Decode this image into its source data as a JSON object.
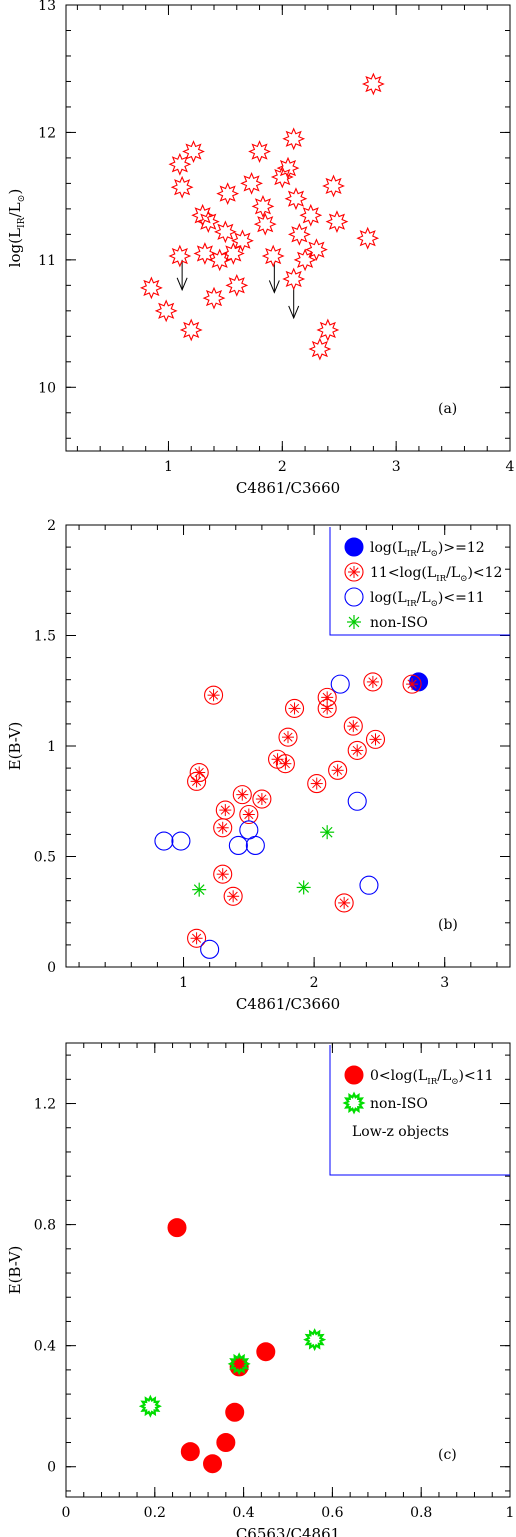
{
  "chart_data": [
    {
      "id": "a",
      "type": "scatter",
      "panel_label": "(a)",
      "xlabel": "C4861/C3660",
      "ylabel": "log(L_IR/L_sun)",
      "xlim": [
        0.1,
        4.0
      ],
      "ylim": [
        9.5,
        13.0
      ],
      "xticks": [
        1,
        2,
        3,
        4
      ],
      "yticks": [
        10,
        11,
        12,
        13
      ],
      "series": [
        {
          "marker": "star8",
          "color": "#ff0000",
          "points": [
            [
              0.85,
              10.78
            ],
            [
              0.98,
              10.6
            ],
            [
              1.1,
              11.75
            ],
            [
              1.22,
              11.85
            ],
            [
              1.12,
              11.57
            ],
            [
              1.1,
              11.03
            ],
            [
              1.2,
              10.45
            ],
            [
              1.3,
              11.35
            ],
            [
              1.35,
              11.3
            ],
            [
              1.32,
              11.05
            ],
            [
              1.4,
              10.7
            ],
            [
              1.45,
              11.0
            ],
            [
              1.5,
              11.22
            ],
            [
              1.52,
              11.52
            ],
            [
              1.57,
              11.05
            ],
            [
              1.6,
              10.8
            ],
            [
              1.65,
              11.15
            ],
            [
              1.73,
              11.6
            ],
            [
              1.8,
              11.85
            ],
            [
              1.83,
              11.42
            ],
            [
              1.85,
              11.28
            ],
            [
              1.92,
              11.03
            ],
            [
              2.0,
              11.65
            ],
            [
              2.05,
              11.72
            ],
            [
              2.1,
              11.95
            ],
            [
              2.12,
              11.48
            ],
            [
              2.15,
              11.2
            ],
            [
              2.1,
              10.85
            ],
            [
              2.2,
              11.0
            ],
            [
              2.25,
              11.35
            ],
            [
              2.3,
              11.08
            ],
            [
              2.33,
              10.3
            ],
            [
              2.4,
              10.45
            ],
            [
              2.45,
              11.58
            ],
            [
              2.48,
              11.3
            ],
            [
              2.75,
              11.17
            ],
            [
              2.8,
              12.38
            ]
          ]
        }
      ],
      "upper_limit_arrows": [
        [
          1.12,
          11.0
        ],
        [
          1.93,
          10.98
        ],
        [
          2.1,
          10.78
        ]
      ]
    },
    {
      "id": "b",
      "type": "scatter",
      "panel_label": "(b)",
      "xlabel": "C4861/C3660",
      "ylabel": "E(B-V)",
      "xlim": [
        0.1,
        3.5
      ],
      "ylim": [
        0,
        2
      ],
      "xticks": [
        1,
        2,
        3
      ],
      "yticks": [
        0,
        0.5,
        1,
        1.5,
        2
      ],
      "legend": {
        "position": "top-right",
        "entries": [
          {
            "label": "log(L_IR/L_sun)>=12",
            "marker": "filled-circle",
            "color": "#0000ff"
          },
          {
            "label": "11<log(L_IR/L_sun)<12",
            "marker": "circle-asterisk",
            "color": "#ff0000"
          },
          {
            "label": "log(L_IR/L_sun)<=11",
            "marker": "open-circle",
            "color": "#0000ff"
          },
          {
            "label": "non-ISO",
            "marker": "asterisk",
            "color": "#00cc00"
          }
        ]
      },
      "series": [
        {
          "name": "log(L_IR/L_sun)>=12",
          "marker": "filled-circle",
          "color": "#0000ff",
          "points": [
            [
              2.8,
              1.29
            ]
          ]
        },
        {
          "name": "11<log(L_IR/L_sun)<12",
          "marker": "circle-asterisk",
          "color": "#ff0000",
          "points": [
            [
              1.1,
              0.13
            ],
            [
              1.1,
              0.84
            ],
            [
              1.12,
              0.88
            ],
            [
              1.23,
              1.23
            ],
            [
              1.3,
              0.63
            ],
            [
              1.3,
              0.42
            ],
            [
              1.32,
              0.71
            ],
            [
              1.38,
              0.32
            ],
            [
              1.45,
              0.78
            ],
            [
              1.5,
              0.69
            ],
            [
              1.6,
              0.76
            ],
            [
              1.72,
              0.94
            ],
            [
              1.78,
              0.92
            ],
            [
              1.8,
              1.04
            ],
            [
              1.85,
              1.17
            ],
            [
              2.02,
              0.83
            ],
            [
              2.1,
              1.22
            ],
            [
              2.1,
              1.17
            ],
            [
              2.18,
              0.89
            ],
            [
              2.23,
              0.29
            ],
            [
              2.3,
              1.09
            ],
            [
              2.33,
              0.98
            ],
            [
              2.45,
              1.29
            ],
            [
              2.47,
              1.03
            ],
            [
              2.75,
              1.28
            ]
          ]
        },
        {
          "name": "log(L_IR/L_sun)<=11",
          "marker": "open-circle",
          "color": "#0000ff",
          "points": [
            [
              0.85,
              0.57
            ],
            [
              0.98,
              0.57
            ],
            [
              1.2,
              0.08
            ],
            [
              1.42,
              0.55
            ],
            [
              1.5,
              0.62
            ],
            [
              1.55,
              0.55
            ],
            [
              2.2,
              1.28
            ],
            [
              2.33,
              0.75
            ],
            [
              2.42,
              0.37
            ]
          ]
        },
        {
          "name": "non-ISO",
          "marker": "asterisk",
          "color": "#00cc00",
          "points": [
            [
              1.12,
              0.35
            ],
            [
              1.92,
              0.36
            ],
            [
              2.1,
              0.61
            ]
          ]
        }
      ]
    },
    {
      "id": "c",
      "type": "scatter",
      "panel_label": "(c)",
      "xlabel": "C6563/C4861",
      "ylabel": "E(B-V)",
      "xlim": [
        0,
        1
      ],
      "ylim": [
        -0.1,
        1.4
      ],
      "xticks": [
        0,
        0.2,
        0.4,
        0.6,
        0.8,
        1
      ],
      "yticks": [
        0,
        0.4,
        0.8,
        1.2
      ],
      "legend": {
        "position": "top-right",
        "entries": [
          {
            "label": "0<log(L_IR/L_sun)<11",
            "marker": "filled-circle",
            "color": "#ff0000"
          },
          {
            "label": "non-ISO",
            "marker": "starburst",
            "color": "#00dd00"
          },
          {
            "label": "Low-z objects",
            "marker": "none",
            "color": "#000000"
          }
        ]
      },
      "series": [
        {
          "name": "0<log(L_IR/L_sun)<11",
          "marker": "filled-circle",
          "color": "#ff0000",
          "points": [
            [
              0.25,
              0.79
            ],
            [
              0.28,
              0.05
            ],
            [
              0.33,
              0.01
            ],
            [
              0.36,
              0.08
            ],
            [
              0.38,
              0.18
            ],
            [
              0.39,
              0.33
            ],
            [
              0.45,
              0.38
            ]
          ]
        },
        {
          "name": "non-ISO",
          "marker": "starburst",
          "color": "#00dd00",
          "points": [
            [
              0.19,
              0.2
            ],
            [
              0.39,
              0.34
            ],
            [
              0.56,
              0.42
            ]
          ]
        }
      ]
    }
  ]
}
